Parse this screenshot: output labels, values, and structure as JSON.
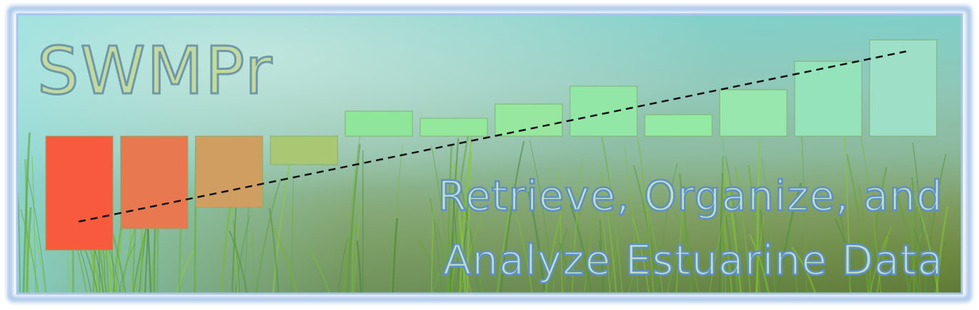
{
  "logo": {
    "name": "SWMPr"
  },
  "tagline": {
    "line1": "Retrieve, Organize, and",
    "line2": "Analyze Estuarine Data"
  },
  "colors": {
    "frame": "#a9c6ea",
    "title_fill": "#c3d9a2",
    "title_stroke": "#6f99a6",
    "tagline_fill": "#bfe0c6",
    "tagline_stroke": "#5f8fc3",
    "trend_line": "#111111"
  },
  "chart_data": {
    "type": "bar",
    "baseline_index": 2,
    "values": [
      -1.6,
      -1.3,
      -1.0,
      -0.4,
      0.35,
      0.25,
      0.45,
      0.7,
      0.3,
      0.65,
      1.05,
      1.35
    ],
    "colors": [
      "#f85a3e",
      "#e7784f",
      "#cf9e60",
      "#aac773",
      "#8fe69a",
      "#94e89c",
      "#98e79f",
      "#92e7a7",
      "#94eaa5",
      "#98e7ae",
      "#95e3bb",
      "#9de0c7"
    ],
    "trend": {
      "start": -1.5,
      "end": 1.45
    }
  }
}
